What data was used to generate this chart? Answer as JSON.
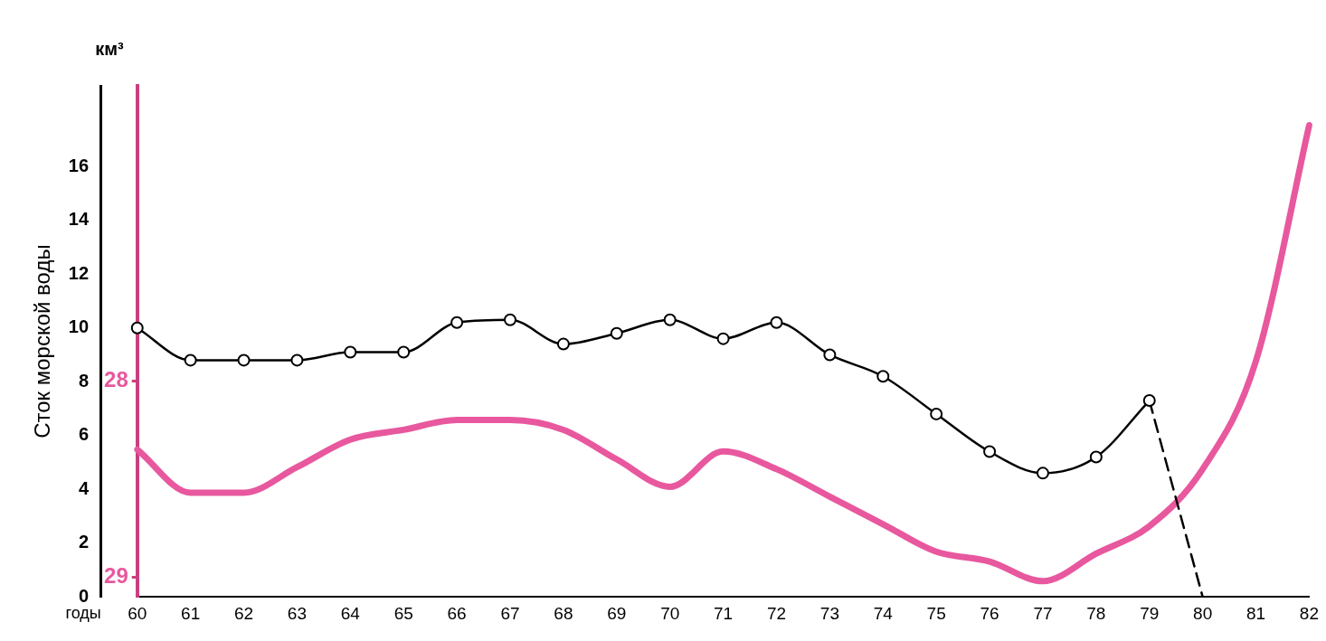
{
  "chart_data": {
    "type": "line",
    "ylabel": "Сток морской воды",
    "xlabel": "годы",
    "annotations": [
      "км³"
    ],
    "categories": [
      "60",
      "61",
      "62",
      "63",
      "64",
      "65",
      "66",
      "67",
      "68",
      "69",
      "70",
      "71",
      "72",
      "73",
      "74",
      "75",
      "76",
      "77",
      "78",
      "79",
      "80",
      "81",
      "82"
    ],
    "series": [
      {
        "color": "#000000",
        "marker": "circle",
        "values": [
          10.0,
          8.8,
          8.8,
          8.8,
          9.1,
          9.1,
          10.2,
          10.3,
          9.4,
          9.8,
          10.3,
          9.6,
          10.2,
          9.0,
          8.2,
          6.8,
          5.4,
          4.6,
          5.2,
          7.3,
          null,
          null,
          null
        ]
      },
      {
        "color": "#000000",
        "marker": "none",
        "line_style": "dashed",
        "values": [
          null,
          null,
          null,
          null,
          null,
          null,
          null,
          null,
          null,
          null,
          null,
          null,
          null,
          null,
          null,
          null,
          null,
          null,
          null,
          7.3,
          0,
          null,
          null
        ]
      },
      {
        "color": "#e8589e",
        "marker": "none",
        "axis": "y2",
        "values": [
          28.35,
          28.57,
          28.57,
          28.44,
          28.3,
          28.25,
          28.2,
          28.2,
          28.25,
          28.4,
          28.54,
          28.36,
          28.45,
          28.59,
          28.73,
          28.87,
          28.92,
          29.02,
          28.88,
          28.74,
          28.45,
          27.9,
          26.7
        ]
      }
    ],
    "ylim": [
      0,
      19
    ],
    "yticks": [
      0,
      2,
      4,
      6,
      8,
      10,
      12,
      14,
      16
    ],
    "y2lim": [
      29.1,
      26.5
    ],
    "y2ticks": [
      28,
      29
    ],
    "grid": false,
    "legend": false
  }
}
